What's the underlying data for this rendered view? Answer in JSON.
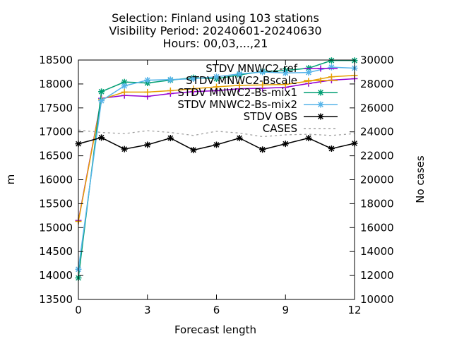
{
  "chart_data": {
    "type": "line",
    "title_lines": [
      "Selection: Finland using    103 stations",
      "Visibility    Period: 20240601-20240630",
      "Hours: 00,03,...,21"
    ],
    "xlabel": "Forecast length",
    "ylabel": "m",
    "y2label": "No cases",
    "xlim": [
      0,
      12
    ],
    "ylim": [
      13500,
      18500
    ],
    "y2lim": [
      10000,
      30000
    ],
    "xticks": [
      0,
      3,
      6,
      9,
      12
    ],
    "yticks": [
      13500,
      14000,
      14500,
      15000,
      15500,
      16000,
      16500,
      17000,
      17500,
      18000,
      18500
    ],
    "y2ticks": [
      10000,
      12000,
      14000,
      16000,
      18000,
      20000,
      22000,
      24000,
      26000,
      28000,
      30000
    ],
    "grid": false,
    "legend_position": "top-right",
    "x": [
      0,
      1,
      2,
      3,
      4,
      5,
      6,
      7,
      8,
      9,
      10,
      11,
      12
    ],
    "series": [
      {
        "name": "STDV MNWC2-ref",
        "color": "#9400d3",
        "marker": "plus",
        "values": [
          15150,
          17700,
          17760,
          17740,
          17800,
          17840,
          17860,
          17900,
          17910,
          17930,
          18010,
          18080,
          18110
        ]
      },
      {
        "name": "STDV MNWC2-Bscale",
        "color": "#e69f00",
        "marker": "plus",
        "values": [
          15130,
          17680,
          17830,
          17830,
          17860,
          17900,
          17940,
          17970,
          17980,
          17990,
          18060,
          18150,
          18180
        ]
      },
      {
        "name": "STDV MNWC2-Bs-mix1",
        "color": "#009e73",
        "marker": "star",
        "values": [
          13950,
          17840,
          18040,
          18020,
          18080,
          18130,
          18110,
          18190,
          18260,
          18280,
          18330,
          18490,
          18490
        ]
      },
      {
        "name": "STDV MNWC2-Bs-mix2",
        "color": "#56b4e9",
        "marker": "star",
        "values": [
          14130,
          17650,
          17960,
          18080,
          18090,
          18110,
          18150,
          18210,
          18250,
          18230,
          18240,
          18350,
          18330
        ]
      },
      {
        "name": "STDV OBS",
        "color": "#000000",
        "marker": "star",
        "values": [
          16750,
          16880,
          16640,
          16730,
          16870,
          16620,
          16730,
          16870,
          16630,
          16750,
          16870,
          16650,
          16760
        ]
      },
      {
        "name": "CASES",
        "color": "#a0a0a0",
        "marker": "none",
        "dashed": true,
        "axis": "y2",
        "values": [
          24150,
          23950,
          23850,
          24100,
          23950,
          23700,
          24050,
          23900,
          23600,
          23750,
          23800,
          23700,
          23850
        ]
      }
    ]
  }
}
